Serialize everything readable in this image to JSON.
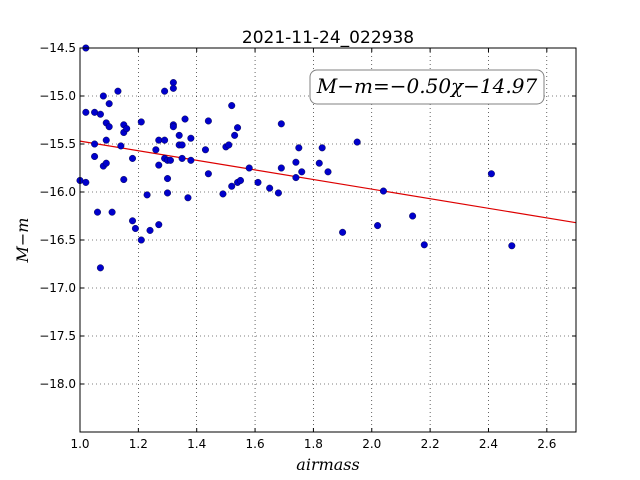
{
  "chart_data": {
    "type": "scatter",
    "title": "2021-11-24_022938",
    "xlabel": "airmass",
    "ylabel": "M−m",
    "xlim": [
      1.0,
      2.7
    ],
    "ylim": [
      -14.5,
      -18.5
    ],
    "y_inverted": true,
    "grid": true,
    "xticks": [
      1.0,
      1.2,
      1.4,
      1.6,
      1.8,
      2.0,
      2.2,
      2.4,
      2.6
    ],
    "xtick_labels": [
      "1.0",
      "1.2",
      "1.4",
      "1.6",
      "1.8",
      "2.0",
      "2.2",
      "2.4",
      "2.6"
    ],
    "yticks": [
      -14.5,
      -15.0,
      -15.5,
      -16.0,
      -16.5,
      -17.0,
      -17.5,
      -18.0
    ],
    "ytick_labels": [
      "−14.5",
      "−15.0",
      "−15.5",
      "−16.0",
      "−16.5",
      "−17.0",
      "−17.5",
      "−18.0"
    ],
    "annotation": "M−m=−0.50χ−14.97",
    "annotation_placement": "top-right",
    "fit_line": {
      "slope": -0.5,
      "intercept": -14.97,
      "color": "#dd0000"
    },
    "point_color": "#0000cc",
    "points": [
      [
        1.02,
        -14.5
      ],
      [
        1.0,
        -15.88
      ],
      [
        1.02,
        -15.9
      ],
      [
        1.02,
        -15.17
      ],
      [
        1.05,
        -15.17
      ],
      [
        1.05,
        -15.5
      ],
      [
        1.05,
        -15.63
      ],
      [
        1.06,
        -16.21
      ],
      [
        1.07,
        -16.79
      ],
      [
        1.07,
        -15.19
      ],
      [
        1.08,
        -15.0
      ],
      [
        1.08,
        -15.73
      ],
      [
        1.09,
        -15.28
      ],
      [
        1.1,
        -15.32
      ],
      [
        1.1,
        -15.08
      ],
      [
        1.09,
        -15.46
      ],
      [
        1.09,
        -15.7
      ],
      [
        1.11,
        -16.21
      ],
      [
        1.13,
        -14.95
      ],
      [
        1.14,
        -15.52
      ],
      [
        1.15,
        -15.38
      ],
      [
        1.15,
        -15.3
      ],
      [
        1.15,
        -15.87
      ],
      [
        1.16,
        -15.34
      ],
      [
        1.18,
        -15.65
      ],
      [
        1.18,
        -16.3
      ],
      [
        1.19,
        -16.38
      ],
      [
        1.21,
        -15.27
      ],
      [
        1.21,
        -16.5
      ],
      [
        1.23,
        -16.03
      ],
      [
        1.24,
        -16.4
      ],
      [
        1.26,
        -15.56
      ],
      [
        1.27,
        -15.46
      ],
      [
        1.27,
        -15.72
      ],
      [
        1.27,
        -16.34
      ],
      [
        1.29,
        -14.95
      ],
      [
        1.29,
        -15.46
      ],
      [
        1.29,
        -15.65
      ],
      [
        1.3,
        -15.67
      ],
      [
        1.3,
        -15.86
      ],
      [
        1.3,
        -16.01
      ],
      [
        1.31,
        -15.67
      ],
      [
        1.32,
        -14.86
      ],
      [
        1.32,
        -14.92
      ],
      [
        1.32,
        -15.3
      ],
      [
        1.32,
        -15.32
      ],
      [
        1.34,
        -15.41
      ],
      [
        1.34,
        -15.51
      ],
      [
        1.35,
        -15.65
      ],
      [
        1.35,
        -15.51
      ],
      [
        1.36,
        -15.24
      ],
      [
        1.37,
        -16.06
      ],
      [
        1.38,
        -15.44
      ],
      [
        1.38,
        -15.67
      ],
      [
        1.43,
        -15.56
      ],
      [
        1.44,
        -15.26
      ],
      [
        1.44,
        -15.81
      ],
      [
        1.49,
        -16.02
      ],
      [
        1.5,
        -15.53
      ],
      [
        1.51,
        -15.51
      ],
      [
        1.52,
        -15.94
      ],
      [
        1.52,
        -15.1
      ],
      [
        1.53,
        -15.41
      ],
      [
        1.54,
        -15.33
      ],
      [
        1.54,
        -15.9
      ],
      [
        1.55,
        -15.88
      ],
      [
        1.58,
        -15.75
      ],
      [
        1.61,
        -15.9
      ],
      [
        1.65,
        -15.96
      ],
      [
        1.68,
        -16.01
      ],
      [
        1.69,
        -15.29
      ],
      [
        1.69,
        -15.75
      ],
      [
        1.74,
        -15.85
      ],
      [
        1.74,
        -15.69
      ],
      [
        1.75,
        -15.54
      ],
      [
        1.76,
        -15.79
      ],
      [
        1.82,
        -15.7
      ],
      [
        1.83,
        -15.54
      ],
      [
        1.85,
        -15.79
      ],
      [
        1.9,
        -16.42
      ],
      [
        1.95,
        -15.48
      ],
      [
        2.02,
        -16.35
      ],
      [
        2.04,
        -15.99
      ],
      [
        2.14,
        -16.25
      ],
      [
        2.18,
        -16.55
      ],
      [
        2.41,
        -15.81
      ],
      [
        2.48,
        -16.56
      ]
    ]
  }
}
